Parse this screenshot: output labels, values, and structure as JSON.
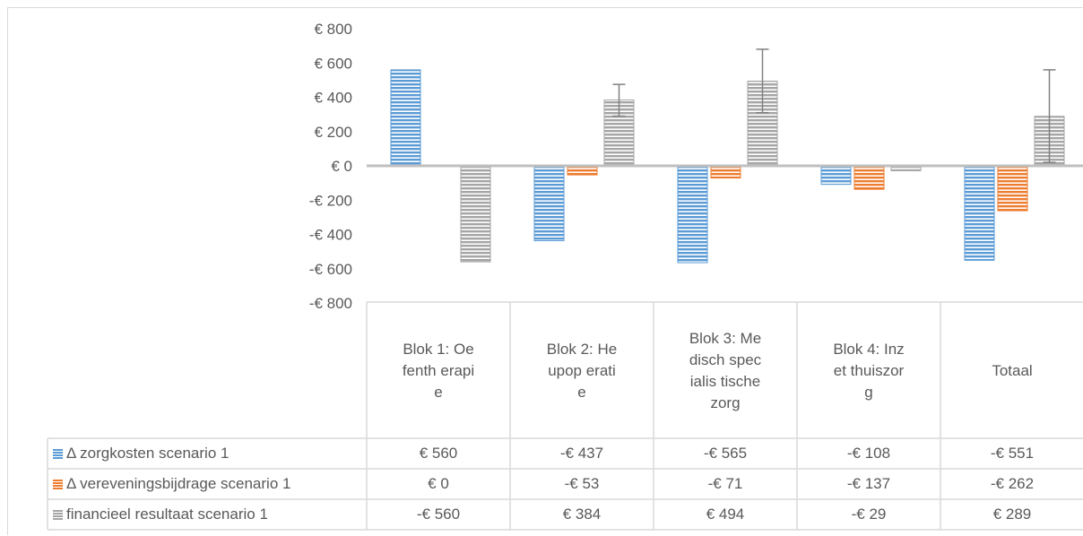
{
  "chart_data": {
    "type": "bar",
    "categories": [
      "Blok 1: Oefenth erapie",
      "Blok 2: Heupop eratie",
      "Blok 3: Medisch specialis tische zorg",
      "Blok 4: Inzet thuiszor g",
      "Totaal"
    ],
    "series": [
      {
        "name": "Δ zorgkosten scenario 1",
        "color": "#5b9bd5",
        "values": [
          560,
          -437,
          -565,
          -108,
          -551
        ],
        "labels": [
          "€ 560",
          "-€ 437",
          "-€ 565",
          "-€ 108",
          "-€ 551"
        ]
      },
      {
        "name": "Δ vereveningsbijdrage scenario 1",
        "color": "#ed7d31",
        "values": [
          0,
          -53,
          -71,
          -137,
          -262
        ],
        "labels": [
          "€ 0",
          "-€ 53",
          "-€ 71",
          "-€ 137",
          "-€ 262"
        ]
      },
      {
        "name": "financieel resultaat scenario 1",
        "color": "#a5a5a5",
        "values": [
          -560,
          384,
          494,
          -29,
          289
        ],
        "labels": [
          "-€ 560",
          "€ 384",
          "€ 494",
          "-€ 29",
          "€ 289"
        ],
        "error_bars": [
          [
            -560,
            -560
          ],
          [
            290,
            475
          ],
          [
            310,
            680
          ],
          [
            -29,
            -29
          ],
          [
            20,
            560
          ]
        ]
      }
    ],
    "y_ticks": [
      "€ 800",
      "€ 600",
      "€ 400",
      "€ 200",
      "€ 0",
      "-€ 200",
      "-€ 400",
      "-€ 600",
      "-€ 800"
    ],
    "ylim": [
      -800,
      800
    ],
    "data_table": true,
    "legend_in_table": true
  }
}
